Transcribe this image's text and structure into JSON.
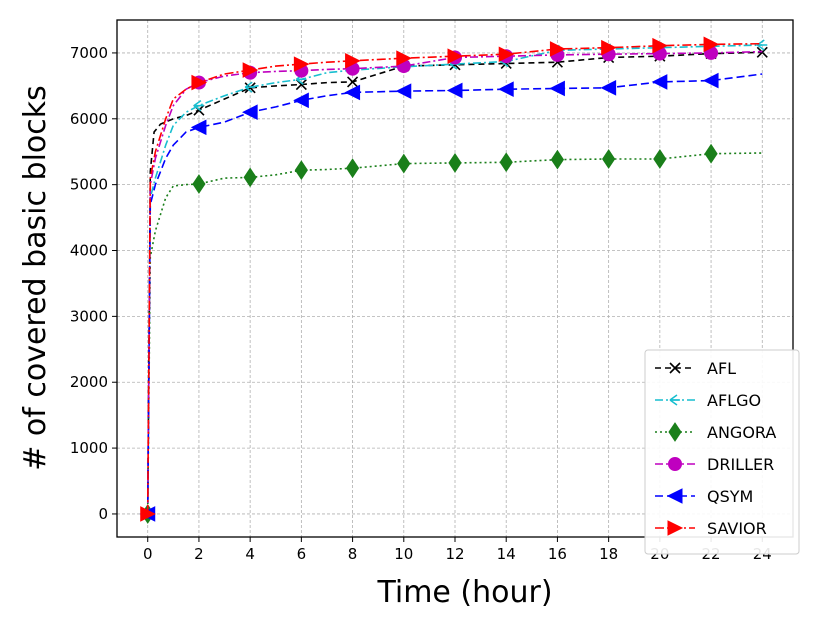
{
  "chart_data": {
    "type": "line",
    "title": "",
    "xlabel": "Time (hour)",
    "ylabel": "# of covered basic blocks",
    "xlim": [
      -1.2,
      25.2
    ],
    "ylim": [
      -350,
      7500
    ],
    "xticks": [
      0,
      2,
      4,
      6,
      8,
      10,
      12,
      14,
      16,
      18,
      20,
      22,
      24
    ],
    "yticks": [
      0,
      1000,
      2000,
      3000,
      4000,
      5000,
      6000,
      7000
    ],
    "grid": true,
    "legend_position": "bottom-right",
    "series": [
      {
        "name": "AFL",
        "color": "#000000",
        "dash": "6,4",
        "marker": "x",
        "x": [
          0,
          0.1,
          0.25,
          0.5,
          1,
          1.5,
          2,
          3,
          4,
          5,
          6,
          7,
          8,
          10,
          12,
          14,
          16,
          18,
          20,
          22,
          24
        ],
        "y": [
          0,
          5200,
          5800,
          5920,
          6000,
          6050,
          6130,
          6300,
          6470,
          6500,
          6520,
          6550,
          6560,
          6800,
          6820,
          6840,
          6860,
          6930,
          6950,
          6990,
          7010
        ],
        "markers_x": [
          0,
          2,
          4,
          6,
          8,
          10,
          12,
          14,
          16,
          18,
          20,
          22,
          24
        ]
      },
      {
        "name": "AFLGO",
        "color": "#17becf",
        "dash": "8,3,2,3",
        "marker": "tri_left_thin",
        "x": [
          0,
          0.1,
          0.3,
          0.7,
          1,
          1.5,
          2,
          3,
          4,
          5,
          6,
          7,
          8,
          10,
          12,
          14,
          16,
          18,
          20,
          22,
          24
        ],
        "y": [
          0,
          4800,
          5100,
          5600,
          5900,
          6100,
          6200,
          6350,
          6480,
          6550,
          6600,
          6700,
          6740,
          6790,
          6830,
          6870,
          7040,
          7060,
          7080,
          7100,
          7120
        ],
        "markers_x": [
          0,
          2,
          4,
          6,
          8,
          10,
          12,
          14,
          16,
          18,
          20,
          22,
          24
        ]
      },
      {
        "name": "ANGORA",
        "color": "#1a7f1a",
        "dash": "2,3",
        "marker": "diamond",
        "x": [
          0,
          0.1,
          0.3,
          0.7,
          1,
          1.5,
          2,
          3,
          4,
          5,
          6,
          7,
          8,
          10,
          12,
          14,
          16,
          18,
          20,
          22,
          24
        ],
        "y": [
          0,
          3900,
          4300,
          4800,
          4980,
          5000,
          5010,
          5100,
          5110,
          5150,
          5220,
          5230,
          5250,
          5320,
          5330,
          5340,
          5380,
          5390,
          5390,
          5470,
          5480
        ],
        "markers_x": [
          0,
          2,
          4,
          6,
          8,
          10,
          12,
          14,
          16,
          18,
          20,
          22
        ]
      },
      {
        "name": "DRILLER",
        "color": "#bf00bf",
        "dash": "8,3,2,3",
        "marker": "circle",
        "x": [
          0,
          0.1,
          0.3,
          0.7,
          1,
          1.5,
          2,
          3,
          4,
          5,
          6,
          7,
          8,
          10,
          12,
          14,
          16,
          18,
          20,
          22,
          24
        ],
        "y": [
          0,
          5000,
          5400,
          5900,
          6200,
          6450,
          6550,
          6650,
          6700,
          6720,
          6730,
          6750,
          6760,
          6800,
          6930,
          6950,
          6970,
          6980,
          6990,
          7000,
          7020
        ],
        "markers_x": [
          2,
          4,
          6,
          8,
          10,
          12,
          14,
          16,
          18,
          20,
          22
        ]
      },
      {
        "name": "QSYM",
        "color": "#0000ff",
        "dash": "8,4",
        "marker": "tri_left",
        "x": [
          0,
          0.1,
          0.3,
          0.7,
          1,
          1.5,
          2,
          3,
          4,
          5,
          6,
          7,
          8,
          10,
          12,
          14,
          16,
          18,
          20,
          22,
          24
        ],
        "y": [
          0,
          4700,
          5000,
          5400,
          5600,
          5800,
          5870,
          5950,
          6100,
          6180,
          6280,
          6350,
          6400,
          6420,
          6430,
          6450,
          6460,
          6470,
          6560,
          6580,
          6680
        ],
        "markers_x": [
          0,
          2,
          4,
          6,
          8,
          10,
          12,
          14,
          16,
          18,
          20,
          22
        ]
      },
      {
        "name": "SAVIOR",
        "color": "#ff0000",
        "dash": "9,3,2,3",
        "marker": "tri_right",
        "x": [
          0,
          0.1,
          0.3,
          0.7,
          1,
          1.5,
          2,
          3,
          4,
          5,
          6,
          7,
          8,
          10,
          12,
          14,
          16,
          18,
          20,
          22,
          24
        ],
        "y": [
          0,
          5100,
          5500,
          6000,
          6300,
          6450,
          6550,
          6680,
          6740,
          6800,
          6830,
          6860,
          6880,
          6920,
          6950,
          6980,
          7060,
          7080,
          7110,
          7130,
          7140
        ],
        "markers_x": [
          0,
          2,
          4,
          6,
          8,
          10,
          12,
          14,
          16,
          18,
          20,
          22
        ]
      }
    ]
  }
}
